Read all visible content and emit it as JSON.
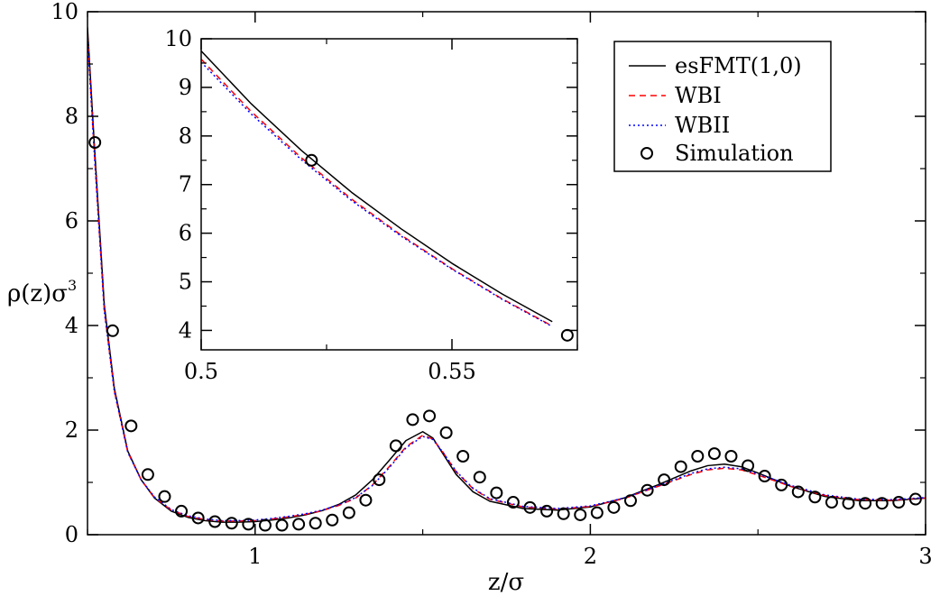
{
  "chart_data": [
    {
      "id": "main",
      "type": "line",
      "xlabel": "z/σ",
      "ylabel": "ρ(z)σ",
      "ylabel_sup": "3",
      "xlim": [
        0.5,
        3.0
      ],
      "ylim": [
        0,
        10
      ],
      "xticks": [
        1,
        2,
        3
      ],
      "xtick_labels": [
        "1",
        "2",
        "3"
      ],
      "yticks": [
        0,
        2,
        4,
        6,
        8,
        10
      ],
      "ytick_labels": [
        "0",
        "2",
        "4",
        "6",
        "8",
        "10"
      ],
      "grid": false,
      "series": [
        {
          "name": "esFMT(1,0)",
          "style": "solid",
          "color": "#000000",
          "x": [
            0.5,
            0.52,
            0.55,
            0.58,
            0.62,
            0.66,
            0.7,
            0.75,
            0.8,
            0.85,
            0.9,
            0.95,
            1.0,
            1.05,
            1.1,
            1.15,
            1.2,
            1.25,
            1.3,
            1.35,
            1.4,
            1.45,
            1.5,
            1.53,
            1.56,
            1.6,
            1.65,
            1.7,
            1.8,
            1.9,
            2.0,
            2.1,
            2.2,
            2.3,
            2.35,
            2.4,
            2.45,
            2.5,
            2.6,
            2.7,
            2.8,
            2.9,
            3.0
          ],
          "y": [
            9.7,
            7.5,
            4.4,
            2.8,
            1.6,
            1.05,
            0.7,
            0.45,
            0.33,
            0.27,
            0.24,
            0.24,
            0.25,
            0.28,
            0.32,
            0.38,
            0.46,
            0.58,
            0.76,
            1.05,
            1.42,
            1.8,
            1.97,
            1.85,
            1.55,
            1.15,
            0.82,
            0.64,
            0.5,
            0.47,
            0.53,
            0.7,
            0.95,
            1.22,
            1.32,
            1.35,
            1.3,
            1.18,
            0.92,
            0.73,
            0.65,
            0.65,
            0.7
          ]
        },
        {
          "name": "WBI",
          "style": "dashed",
          "color": "#ff0000",
          "x": [
            0.5,
            0.52,
            0.55,
            0.58,
            0.62,
            0.66,
            0.7,
            0.75,
            0.8,
            0.85,
            0.9,
            0.95,
            1.0,
            1.05,
            1.1,
            1.15,
            1.2,
            1.25,
            1.3,
            1.35,
            1.4,
            1.45,
            1.5,
            1.53,
            1.56,
            1.6,
            1.65,
            1.7,
            1.8,
            1.9,
            2.0,
            2.1,
            2.2,
            2.3,
            2.35,
            2.4,
            2.45,
            2.5,
            2.6,
            2.7,
            2.8,
            2.9,
            3.0
          ],
          "y": [
            9.55,
            7.35,
            4.3,
            2.75,
            1.58,
            1.05,
            0.71,
            0.47,
            0.35,
            0.29,
            0.26,
            0.26,
            0.27,
            0.3,
            0.34,
            0.39,
            0.46,
            0.56,
            0.7,
            0.95,
            1.3,
            1.68,
            1.9,
            1.83,
            1.58,
            1.2,
            0.88,
            0.68,
            0.53,
            0.49,
            0.54,
            0.69,
            0.92,
            1.15,
            1.24,
            1.27,
            1.24,
            1.14,
            0.92,
            0.75,
            0.67,
            0.66,
            0.7
          ]
        },
        {
          "name": "WBII",
          "style": "dotted",
          "color": "#0000ff",
          "x": [
            0.5,
            0.52,
            0.55,
            0.58,
            0.62,
            0.66,
            0.7,
            0.75,
            0.8,
            0.85,
            0.9,
            0.95,
            1.0,
            1.05,
            1.1,
            1.15,
            1.2,
            1.25,
            1.3,
            1.35,
            1.4,
            1.45,
            1.5,
            1.53,
            1.56,
            1.6,
            1.65,
            1.7,
            1.8,
            1.9,
            2.0,
            2.1,
            2.2,
            2.3,
            2.35,
            2.4,
            2.45,
            2.5,
            2.6,
            2.7,
            2.8,
            2.9,
            3.0
          ],
          "y": [
            9.5,
            7.32,
            4.28,
            2.74,
            1.58,
            1.05,
            0.72,
            0.48,
            0.36,
            0.3,
            0.27,
            0.27,
            0.28,
            0.31,
            0.35,
            0.4,
            0.47,
            0.57,
            0.71,
            0.94,
            1.28,
            1.66,
            1.88,
            1.82,
            1.58,
            1.21,
            0.89,
            0.69,
            0.54,
            0.5,
            0.55,
            0.7,
            0.93,
            1.17,
            1.26,
            1.29,
            1.26,
            1.16,
            0.94,
            0.76,
            0.68,
            0.67,
            0.71
          ]
        },
        {
          "name": "Simulation",
          "style": "markers",
          "color": "#000000",
          "x": [
            0.522,
            0.575,
            0.63,
            0.68,
            0.73,
            0.78,
            0.83,
            0.88,
            0.93,
            0.98,
            1.03,
            1.08,
            1.13,
            1.18,
            1.23,
            1.28,
            1.33,
            1.37,
            1.42,
            1.47,
            1.52,
            1.57,
            1.62,
            1.67,
            1.72,
            1.77,
            1.82,
            1.87,
            1.92,
            1.97,
            2.02,
            2.07,
            2.12,
            2.17,
            2.22,
            2.27,
            2.32,
            2.37,
            2.42,
            2.47,
            2.52,
            2.57,
            2.62,
            2.67,
            2.72,
            2.77,
            2.82,
            2.87,
            2.92,
            2.97
          ],
          "y": [
            7.5,
            3.9,
            2.08,
            1.15,
            0.73,
            0.45,
            0.32,
            0.25,
            0.22,
            0.2,
            0.18,
            0.18,
            0.2,
            0.22,
            0.28,
            0.42,
            0.66,
            1.05,
            1.7,
            2.2,
            2.27,
            1.95,
            1.5,
            1.1,
            0.8,
            0.62,
            0.52,
            0.45,
            0.4,
            0.38,
            0.42,
            0.52,
            0.65,
            0.85,
            1.05,
            1.3,
            1.5,
            1.55,
            1.5,
            1.32,
            1.12,
            0.95,
            0.82,
            0.72,
            0.62,
            0.6,
            0.6,
            0.6,
            0.62,
            0.68
          ]
        }
      ],
      "legend": {
        "placement": "top-right",
        "entries": [
          "esFMT(1,0)",
          "WBI",
          "WBII",
          "Simulation"
        ]
      }
    },
    {
      "id": "inset",
      "type": "line",
      "xlabel": "",
      "ylabel": "",
      "xlim": [
        0.5,
        0.575
      ],
      "ylim": [
        3.6,
        10
      ],
      "xticks": [
        0.5,
        0.55
      ],
      "xtick_labels": [
        "0.5",
        "0.55"
      ],
      "yticks": [
        4,
        5,
        6,
        7,
        8,
        9,
        10
      ],
      "ytick_labels": [
        "4",
        "5",
        "6",
        "7",
        "8",
        "9",
        "10"
      ],
      "grid": false,
      "series": [
        {
          "name": "esFMT(1,0)",
          "style": "solid",
          "color": "#000000",
          "x": [
            0.5,
            0.51,
            0.52,
            0.53,
            0.54,
            0.55,
            0.56,
            0.57
          ],
          "y": [
            9.75,
            8.66,
            7.7,
            6.84,
            6.08,
            5.38,
            4.75,
            4.18
          ]
        },
        {
          "name": "WBI",
          "style": "dashed",
          "color": "#ff0000",
          "x": [
            0.5,
            0.51,
            0.52,
            0.53,
            0.54,
            0.55,
            0.56,
            0.57
          ],
          "y": [
            9.58,
            8.5,
            7.55,
            6.7,
            5.95,
            5.27,
            4.65,
            4.09
          ]
        },
        {
          "name": "WBII",
          "style": "dotted",
          "color": "#0000ff",
          "x": [
            0.5,
            0.51,
            0.52,
            0.53,
            0.54,
            0.55,
            0.56,
            0.57
          ],
          "y": [
            9.52,
            8.45,
            7.51,
            6.67,
            5.93,
            5.26,
            4.64,
            4.08
          ]
        },
        {
          "name": "Simulation",
          "style": "markers",
          "color": "#000000",
          "x": [
            0.522,
            0.573
          ],
          "y": [
            7.5,
            3.9
          ]
        }
      ]
    }
  ]
}
